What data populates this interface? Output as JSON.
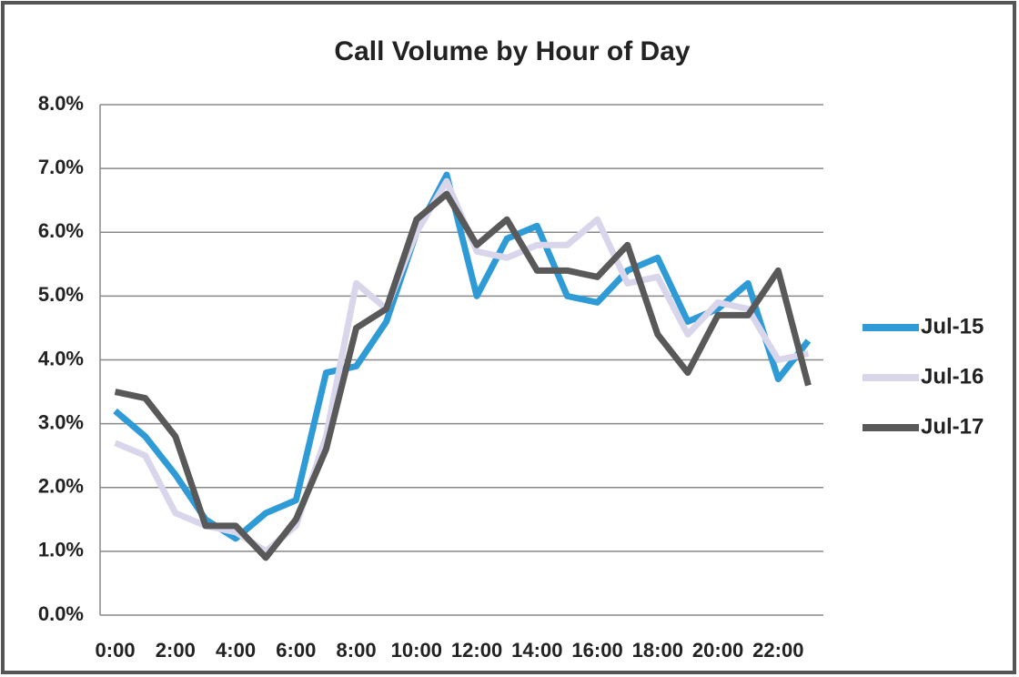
{
  "chart_data": {
    "type": "line",
    "title": "Call Volume by Hour of Day",
    "categories": [
      "0:00",
      null,
      "2:00",
      null,
      "4:00",
      null,
      "6:00",
      null,
      "8:00",
      null,
      "10:00",
      null,
      "12:00",
      null,
      "14:00",
      null,
      "16:00",
      null,
      "18:00",
      null,
      "20:00",
      null,
      "22:00",
      null
    ],
    "series": [
      {
        "name": "Jul-15",
        "color": "#2e9ad6",
        "values": [
          3.2,
          2.8,
          2.2,
          1.5,
          1.2,
          1.6,
          1.8,
          3.8,
          3.9,
          4.6,
          6.0,
          6.9,
          5.0,
          5.9,
          6.1,
          5.0,
          4.9,
          5.4,
          5.6,
          4.6,
          4.8,
          5.2,
          3.7,
          4.3
        ]
      },
      {
        "name": "Jul-16",
        "color": "#d9d6ec",
        "values": [
          2.7,
          2.5,
          1.6,
          1.4,
          1.3,
          1.0,
          1.4,
          2.8,
          5.2,
          4.8,
          6.0,
          6.8,
          5.7,
          5.6,
          5.8,
          5.8,
          6.2,
          5.2,
          5.3,
          4.4,
          4.9,
          4.8,
          4.0,
          4.1
        ]
      },
      {
        "name": "Jul-17",
        "color": "#595959",
        "values": [
          3.5,
          3.4,
          2.8,
          1.4,
          1.4,
          0.9,
          1.5,
          2.6,
          4.5,
          4.8,
          6.2,
          6.6,
          5.8,
          6.2,
          5.4,
          5.4,
          5.3,
          5.8,
          4.4,
          3.8,
          4.7,
          4.7,
          5.4,
          3.6
        ]
      }
    ],
    "ylim": [
      0,
      8
    ],
    "yticks": [
      {
        "value": 0,
        "label": "0.0%"
      },
      {
        "value": 1,
        "label": "1.0%"
      },
      {
        "value": 2,
        "label": "2.0%"
      },
      {
        "value": 3,
        "label": "3.0%"
      },
      {
        "value": 4,
        "label": "4.0%"
      },
      {
        "value": 5,
        "label": "5.0%"
      },
      {
        "value": 6,
        "label": "6.0%"
      },
      {
        "value": 7,
        "label": "7.0%"
      },
      {
        "value": 8,
        "label": "8.0%"
      }
    ],
    "grid": true,
    "legend": "right"
  }
}
